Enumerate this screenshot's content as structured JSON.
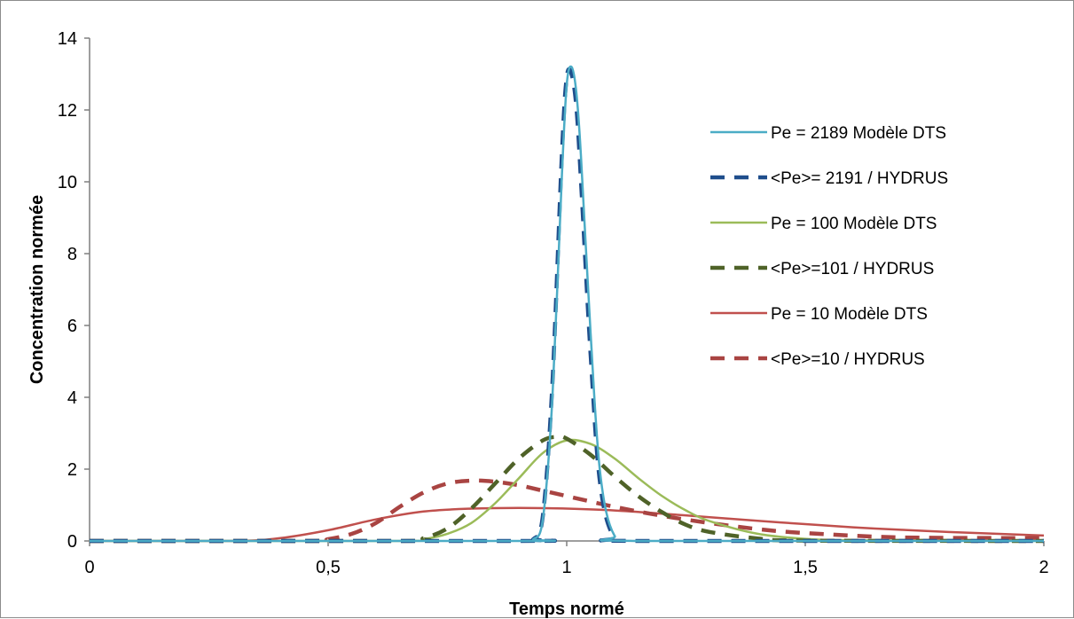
{
  "chart_data": {
    "type": "line",
    "xlabel": "Temps normé",
    "ylabel": "Concentration normée",
    "xlim": [
      0,
      2
    ],
    "ylim": [
      0,
      14
    ],
    "x_ticks": [
      "0",
      "0,5",
      "1",
      "1,5",
      "2"
    ],
    "y_ticks": [
      "0",
      "2",
      "4",
      "6",
      "8",
      "10",
      "12",
      "14"
    ],
    "legend_position": "right",
    "grid": false,
    "series": [
      {
        "name": "Pe = 2189 Modèle DTS",
        "color": "#4bacc6",
        "dash": "solid",
        "x": [
          0,
          0.9,
          0.93,
          0.95,
          0.97,
          0.99,
          1.0,
          1.01,
          1.02,
          1.03,
          1.05,
          1.07,
          1.1,
          1.15,
          2
        ],
        "y": [
          0,
          0,
          0.05,
          0.6,
          4.0,
          10.2,
          12.7,
          13.2,
          12.5,
          10.7,
          5.8,
          1.9,
          0.15,
          0,
          0
        ]
      },
      {
        "name": "<Pe>= 2191 / HYDRUS",
        "color": "#1f4e8c",
        "dash": "dashed",
        "x": [
          0,
          0.9,
          0.93,
          0.95,
          0.97,
          0.99,
          1.0,
          1.01,
          1.02,
          1.03,
          1.05,
          1.07,
          1.1,
          1.15,
          2
        ],
        "y": [
          0,
          0,
          0.05,
          0.7,
          4.4,
          10.8,
          12.9,
          13.0,
          12.1,
          10.0,
          5.2,
          1.6,
          0.1,
          0,
          0
        ]
      },
      {
        "name": "Pe = 100 Modèle DTS",
        "color": "#9bbb59",
        "dash": "solid",
        "x": [
          0,
          0.65,
          0.7,
          0.75,
          0.8,
          0.85,
          0.9,
          0.95,
          1.0,
          1.05,
          1.1,
          1.15,
          1.2,
          1.25,
          1.3,
          1.4,
          1.5,
          1.6,
          2
        ],
        "y": [
          0,
          0,
          0.05,
          0.2,
          0.5,
          1.05,
          1.75,
          2.45,
          2.8,
          2.7,
          2.3,
          1.75,
          1.25,
          0.85,
          0.55,
          0.2,
          0.06,
          0.02,
          0
        ]
      },
      {
        "name": "<Pe>=101 / HYDRUS",
        "color": "#4f6228",
        "dash": "dashed",
        "x": [
          0,
          0.65,
          0.7,
          0.75,
          0.8,
          0.85,
          0.9,
          0.95,
          0.98,
          1.0,
          1.05,
          1.1,
          1.15,
          1.2,
          1.25,
          1.3,
          1.4,
          1.5,
          2
        ],
        "y": [
          0,
          0,
          0.08,
          0.35,
          0.9,
          1.6,
          2.3,
          2.8,
          2.9,
          2.85,
          2.4,
          1.8,
          1.25,
          0.8,
          0.45,
          0.25,
          0.07,
          0.01,
          0
        ]
      },
      {
        "name": "Pe = 10 Modèle DTS",
        "color": "#c0504d",
        "dash": "solid",
        "x": [
          0,
          0.3,
          0.4,
          0.5,
          0.6,
          0.7,
          0.8,
          0.9,
          1.0,
          1.1,
          1.2,
          1.3,
          1.4,
          1.5,
          1.6,
          1.7,
          1.8,
          1.9,
          2
        ],
        "y": [
          0,
          0,
          0.08,
          0.3,
          0.6,
          0.82,
          0.9,
          0.92,
          0.9,
          0.85,
          0.76,
          0.66,
          0.56,
          0.47,
          0.38,
          0.31,
          0.25,
          0.2,
          0.15
        ]
      },
      {
        "name": "<Pe>=10 / HYDRUS",
        "color": "#a94442",
        "dash": "dashed",
        "x": [
          0,
          0.45,
          0.5,
          0.55,
          0.6,
          0.65,
          0.7,
          0.75,
          0.8,
          0.85,
          0.9,
          0.95,
          1.0,
          1.1,
          1.2,
          1.3,
          1.4,
          1.5,
          1.7,
          2
        ],
        "y": [
          0,
          0,
          0.05,
          0.2,
          0.5,
          0.95,
          1.35,
          1.6,
          1.68,
          1.65,
          1.55,
          1.4,
          1.25,
          0.95,
          0.7,
          0.5,
          0.33,
          0.22,
          0.1,
          0.08
        ]
      }
    ]
  }
}
